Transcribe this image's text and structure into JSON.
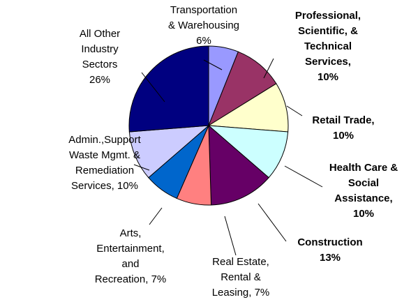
{
  "chart_data": {
    "type": "pie",
    "categories": [
      "Transportation\n& Warehousing",
      "Professional,\nScientific, &\nTechnical\nServices,",
      "Retail Trade,",
      "Health Care &\nSocial\nAssistance,",
      "Construction",
      "Real Estate,\nRental &\nLeasing,",
      "Arts,\nEntertainment,\nand\nRecreation,",
      "Admin.,Support\nWaste Mgmt. &\nRemediation\nServices,",
      "All Other\nIndustry\nSectors"
    ],
    "values": [
      6,
      10,
      10,
      10,
      13,
      7,
      7,
      10,
      26
    ],
    "value_labels": [
      "6%",
      "10%",
      "10%",
      "10%",
      "13%",
      "7%",
      "7%",
      "10%",
      "26%"
    ],
    "colors": [
      "#9999ff",
      "#993366",
      "#ffffcc",
      "#ccffff",
      "#660066",
      "#ff8080",
      "#0066cc",
      "#ccccff",
      "#000080"
    ],
    "label_bold": [
      false,
      true,
      true,
      true,
      true,
      false,
      false,
      false,
      false
    ]
  }
}
